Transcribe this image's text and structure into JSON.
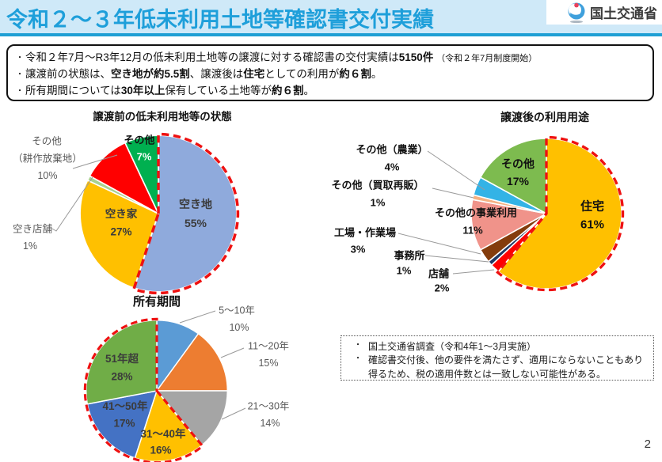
{
  "header": {
    "title": "令和２〜３年低未利用土地等確認書交付実績",
    "agency": "国土交通省"
  },
  "summary_box": {
    "bullets": [
      {
        "parts": [
          {
            "t": "令和２年7月〜R3年12月の低未利用土地等の譲渡に対する確認書の交付実績は",
            "bold": false
          },
          {
            "t": "5150件",
            "bold": true
          },
          {
            "t": "（令和２年7月制度開始）",
            "bold": false,
            "small": true
          }
        ]
      },
      {
        "parts": [
          {
            "t": "譲渡前の状態は、",
            "bold": false
          },
          {
            "t": "空き地が約5.5割",
            "bold": true
          },
          {
            "t": "、譲渡後は",
            "bold": false
          },
          {
            "t": "住宅",
            "bold": true
          },
          {
            "t": "としての利用が",
            "bold": false
          },
          {
            "t": "約６割",
            "bold": true
          },
          {
            "t": "。",
            "bold": false
          }
        ]
      },
      {
        "parts": [
          {
            "t": "所有期間については",
            "bold": false
          },
          {
            "t": "30年以上",
            "bold": true
          },
          {
            "t": "保有している土地等が",
            "bold": false
          },
          {
            "t": "約６割",
            "bold": true
          },
          {
            "t": "。",
            "bold": false
          }
        ]
      }
    ]
  },
  "chart_data": [
    {
      "type": "pie",
      "title": "譲渡前の低未利用地等の状態",
      "start_angle": "top",
      "direction": "clockwise",
      "highlight_style": {
        "stroke": "#ee1111",
        "dashed": true
      },
      "slices": [
        {
          "label": "空き地",
          "pct": 55,
          "pct_label": "55%",
          "color": "#8faadc",
          "highlight": true
        },
        {
          "label": "空き家",
          "pct": 27,
          "pct_label": "27%",
          "color": "#ffc000"
        },
        {
          "label": "空き店舗",
          "pct": 1,
          "pct_label": "1%",
          "color": "#a9d18e"
        },
        {
          "label": "その他（耕作放棄地）",
          "label_lines": [
            "その他",
            "（耕作放棄地）"
          ],
          "pct": 10,
          "pct_label": "10%",
          "color": "#ff0000"
        },
        {
          "label": "その他",
          "pct": 7,
          "pct_label": "7%",
          "color": "#00b050"
        }
      ]
    },
    {
      "type": "pie",
      "title": "譲渡後の利用用途",
      "start_angle": "top",
      "direction": "clockwise",
      "highlight_style": {
        "stroke": "#ee1111",
        "dashed": true
      },
      "slices": [
        {
          "label": "住宅",
          "pct": 61,
          "pct_label": "61%",
          "color": "#ffc000",
          "highlight": true
        },
        {
          "label": "店舗",
          "pct": 2,
          "pct_label": "2%",
          "color": "#ff0000"
        },
        {
          "label": "事務所",
          "pct": 1,
          "pct_label": "1%",
          "color": "#1f3864"
        },
        {
          "label": "工場・作業場",
          "pct": 3,
          "pct_label": "3%",
          "color": "#843c0c"
        },
        {
          "label": "その他の事業利用",
          "pct": 11,
          "pct_label": "11%",
          "color": "#f0938a"
        },
        {
          "label": "その他（買取再販）",
          "pct": 1,
          "pct_label": "1%",
          "color": "#f4b183"
        },
        {
          "label": "その他（農業）",
          "pct": 4,
          "pct_label": "4%",
          "color": "#33b3e6"
        },
        {
          "label": "その他",
          "pct": 17,
          "pct_label": "17%",
          "color": "#7dbb4f"
        }
      ]
    },
    {
      "type": "pie",
      "title": "所有期間",
      "start_angle": "top",
      "direction": "clockwise",
      "highlight_style": {
        "stroke": "#ee1111",
        "dashed": true
      },
      "slices": [
        {
          "label": "5〜10年",
          "pct": 10,
          "pct_label": "10%",
          "color": "#5b9bd5"
        },
        {
          "label": "11〜20年",
          "pct": 15,
          "pct_label": "15%",
          "color": "#ed7d31"
        },
        {
          "label": "21〜30年",
          "pct": 14,
          "pct_label": "14%",
          "color": "#a5a5a5"
        },
        {
          "label": "31〜40年",
          "pct": 16,
          "pct_label": "16%",
          "color": "#ffc000",
          "highlight": true
        },
        {
          "label": "41〜50年",
          "pct": 17,
          "pct_label": "17%",
          "color": "#4472c4",
          "highlight": true
        },
        {
          "label": "51年超",
          "pct": 28,
          "pct_label": "28%",
          "color": "#70ad47",
          "highlight": true
        }
      ]
    }
  ],
  "note_box": {
    "bullets": [
      "国土交通省調査（令和4年1〜3月実施）",
      "確認書交付後、他の要件を満たさず、適用にならないこともあり得るため、税の適用件数とは一致しない可能性がある。"
    ]
  },
  "page_number": "2",
  "colors": {
    "header_band": "#cfe9f8",
    "header_title": "#1e9fda",
    "header_rule": "#1f9fd4",
    "highlight_dash": "#ee1111"
  }
}
